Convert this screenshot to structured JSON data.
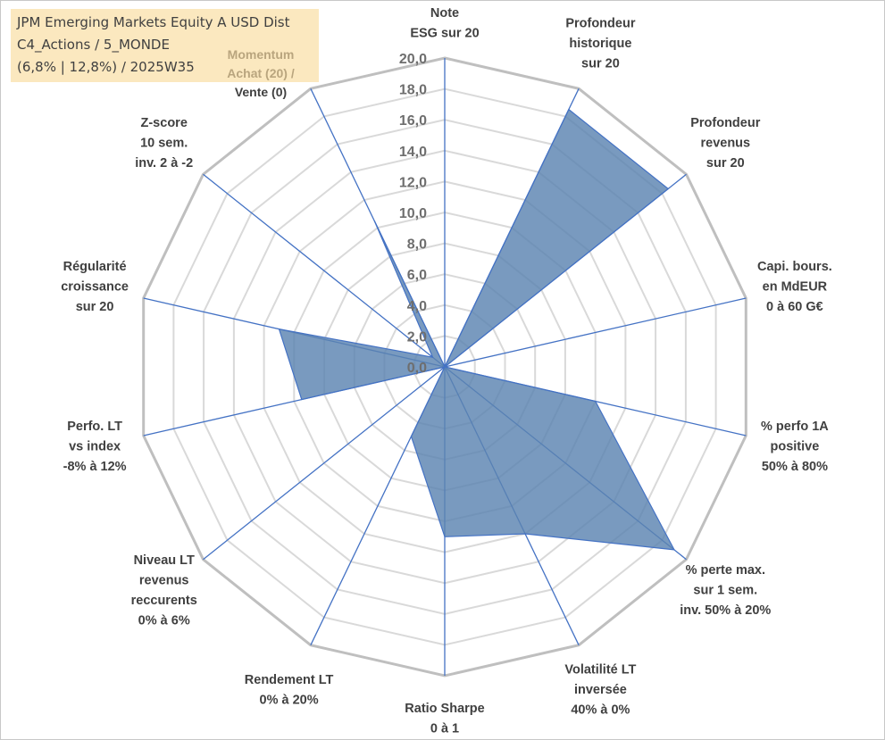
{
  "title": {
    "line1": "JPM Emerging Markets Equity A USD Dist",
    "line2": "C4_Actions / 5_MONDE",
    "line3": "(6,8% | 12,8%) / 2025W35"
  },
  "colors": {
    "fill": "#5b84b1",
    "fill_opacity": 0.82,
    "spoke": "#4472c4",
    "grid_outer": "#bfbfbf",
    "grid_inner": "#d9d9d9",
    "title_bg": "#fbe8bf"
  },
  "chart_data": {
    "type": "radar",
    "rmin": 0,
    "rmax": 20,
    "tick_step": 2,
    "grid": true,
    "tick_labels": [
      "0,0",
      "2,0",
      "4,0",
      "6,0",
      "8,0",
      "10,0",
      "12,0",
      "14,0",
      "16,0",
      "18,0",
      "20,0"
    ],
    "axes": [
      {
        "lines": [
          "Note",
          "ESG sur 20"
        ]
      },
      {
        "lines": [
          "Profondeur",
          "historique",
          "sur 20"
        ]
      },
      {
        "lines": [
          "Profondeur",
          "revenus",
          "sur 20"
        ]
      },
      {
        "lines": [
          "Capi. bours.",
          "en MdEUR",
          "0 à 60 G€"
        ]
      },
      {
        "lines": [
          "% perfo 1A",
          "positive",
          "50% à 80%"
        ]
      },
      {
        "lines": [
          "% perte max.",
          "sur 1 sem.",
          "inv. 50% à 20%"
        ]
      },
      {
        "lines": [
          "Volatilité LT",
          "inversée",
          "40% à 0%"
        ]
      },
      {
        "lines": [
          "Ratio Sharpe",
          "0 à 1"
        ]
      },
      {
        "lines": [
          "Rendement LT",
          "0% à 20%"
        ]
      },
      {
        "lines": [
          "Niveau LT",
          "revenus",
          "reccurents",
          "0% à 6%"
        ]
      },
      {
        "lines": [
          "Perfo. LT",
          "vs index",
          "-8% à 12%"
        ]
      },
      {
        "lines": [
          "Régularité",
          "croissance",
          "sur 20"
        ]
      },
      {
        "lines": [
          "Z-score",
          "10 sem.",
          "inv. 2 à -2"
        ]
      },
      {
        "lines": [
          "Momentum",
          "Achat (20) /",
          "Vente (0)"
        ]
      }
    ],
    "series": [
      {
        "values": [
          0,
          18.5,
          18.5,
          0,
          10,
          19,
          12,
          11,
          5,
          0,
          9.5,
          11,
          1,
          10.5
        ]
      }
    ]
  }
}
